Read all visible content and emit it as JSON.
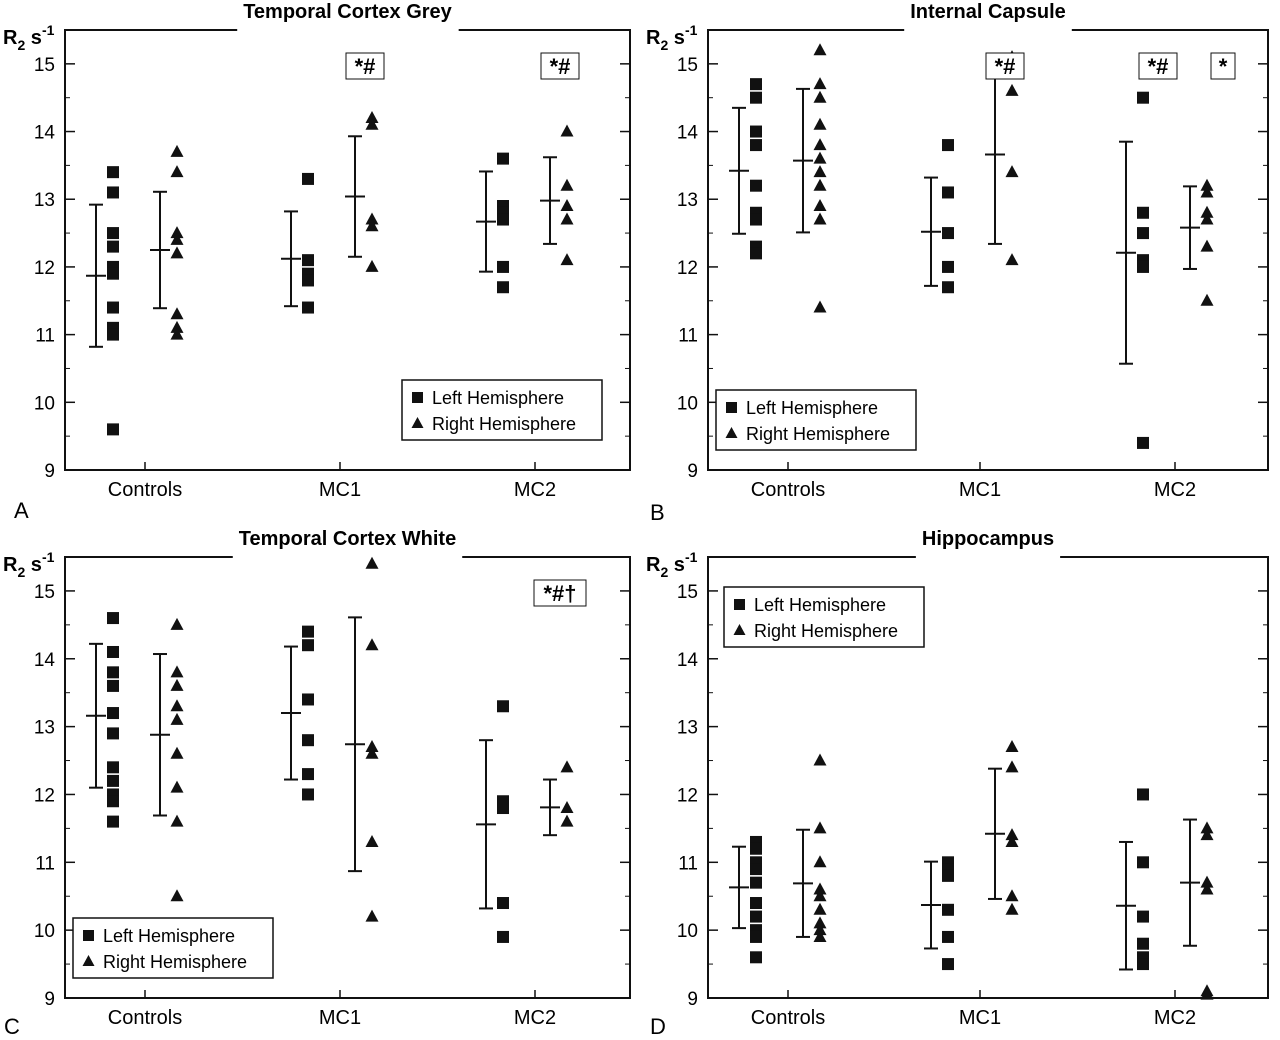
{
  "chart_data": [
    {
      "panel": "A",
      "type": "scatter",
      "title": "Temporal Cortex Grey",
      "ylabel": "R2 s-1",
      "ylim": [
        9,
        15.5
      ],
      "yticks": [
        9,
        10,
        11,
        12,
        13,
        14,
        15
      ],
      "categories": [
        "Controls",
        "MC1",
        "MC2"
      ],
      "legend": {
        "position": "bottom-right",
        "entries": [
          "Left Hemisphere",
          "Right Hemisphere"
        ]
      },
      "significance": [
        {
          "category": "MC1",
          "text": "*#"
        },
        {
          "category": "MC2",
          "text": "*#"
        }
      ],
      "series": [
        {
          "name": "Left Hemisphere",
          "marker": "square",
          "points": [
            [
              0,
              13.4
            ],
            [
              0,
              13.1
            ],
            [
              0,
              12.5
            ],
            [
              0,
              12.3
            ],
            [
              0,
              12.0
            ],
            [
              0,
              11.9
            ],
            [
              0,
              11.4
            ],
            [
              0,
              11.1
            ],
            [
              0,
              11.0
            ],
            [
              0,
              9.6
            ],
            [
              1,
              13.3
            ],
            [
              1,
              12.1
            ],
            [
              1,
              11.9
            ],
            [
              1,
              11.8
            ],
            [
              1,
              11.4
            ],
            [
              2,
              13.6
            ],
            [
              2,
              12.9
            ],
            [
              2,
              12.8
            ],
            [
              2,
              12.7
            ],
            [
              2,
              12.0
            ],
            [
              2,
              11.7
            ]
          ],
          "summary": [
            {
              "category": 0,
              "mean": 11.87,
              "sd": 1.05
            },
            {
              "category": 1,
              "mean": 12.12,
              "sd": 0.7
            },
            {
              "category": 2,
              "mean": 12.67,
              "sd": 0.74
            }
          ]
        },
        {
          "name": "Right Hemisphere",
          "marker": "triangle",
          "points": [
            [
              0,
              13.7
            ],
            [
              0,
              13.4
            ],
            [
              0,
              12.5
            ],
            [
              0,
              12.4
            ],
            [
              0,
              12.2
            ],
            [
              0,
              11.3
            ],
            [
              0,
              11.1
            ],
            [
              0,
              11.0
            ],
            [
              1,
              14.2
            ],
            [
              1,
              14.1
            ],
            [
              1,
              12.7
            ],
            [
              1,
              12.6
            ],
            [
              1,
              12.0
            ],
            [
              2,
              14.0
            ],
            [
              2,
              13.2
            ],
            [
              2,
              12.9
            ],
            [
              2,
              12.7
            ],
            [
              2,
              12.1
            ]
          ],
          "summary": [
            {
              "category": 0,
              "mean": 12.25,
              "sd": 0.86
            },
            {
              "category": 1,
              "mean": 13.04,
              "sd": 0.89
            },
            {
              "category": 2,
              "mean": 12.98,
              "sd": 0.64
            }
          ]
        }
      ]
    },
    {
      "panel": "B",
      "type": "scatter",
      "title": "Internal Capsule",
      "ylabel": "R2 s-1",
      "ylim": [
        9,
        15.5
      ],
      "yticks": [
        9,
        10,
        11,
        12,
        13,
        14,
        15
      ],
      "categories": [
        "Controls",
        "MC1",
        "MC2"
      ],
      "legend": {
        "position": "bottom-left",
        "entries": [
          "Left Hemisphere",
          "Right Hemisphere"
        ]
      },
      "significance": [
        {
          "category": "MC1",
          "text": "*#"
        },
        {
          "category": "MC2-left",
          "text": "*#"
        },
        {
          "category": "MC2-right",
          "text": "*"
        }
      ],
      "series": [
        {
          "name": "Left Hemisphere",
          "marker": "square",
          "points": [
            [
              0,
              14.7
            ],
            [
              0,
              14.5
            ],
            [
              0,
              14.0
            ],
            [
              0,
              13.8
            ],
            [
              0,
              13.2
            ],
            [
              0,
              12.8
            ],
            [
              0,
              12.7
            ],
            [
              0,
              12.3
            ],
            [
              0,
              12.2
            ],
            [
              1,
              13.8
            ],
            [
              1,
              13.1
            ],
            [
              1,
              12.5
            ],
            [
              1,
              12.0
            ],
            [
              1,
              11.7
            ],
            [
              2,
              14.5
            ],
            [
              2,
              12.8
            ],
            [
              2,
              12.5
            ],
            [
              2,
              12.1
            ],
            [
              2,
              12.0
            ],
            [
              2,
              9.4
            ]
          ],
          "summary": [
            {
              "category": 0,
              "mean": 13.42,
              "sd": 0.93
            },
            {
              "category": 1,
              "mean": 12.52,
              "sd": 0.8
            },
            {
              "category": 2,
              "mean": 12.21,
              "sd": 1.64
            }
          ]
        },
        {
          "name": "Right Hemisphere",
          "marker": "triangle",
          "points": [
            [
              0,
              15.2
            ],
            [
              0,
              14.7
            ],
            [
              0,
              14.5
            ],
            [
              0,
              14.1
            ],
            [
              0,
              13.8
            ],
            [
              0,
              13.6
            ],
            [
              0,
              13.4
            ],
            [
              0,
              13.2
            ],
            [
              0,
              12.9
            ],
            [
              0,
              12.7
            ],
            [
              0,
              11.4
            ],
            [
              1,
              15.1
            ],
            [
              1,
              14.6
            ],
            [
              1,
              13.4
            ],
            [
              1,
              12.1
            ],
            [
              2,
              13.2
            ],
            [
              2,
              13.1
            ],
            [
              2,
              12.8
            ],
            [
              2,
              12.7
            ],
            [
              2,
              12.3
            ],
            [
              2,
              11.5
            ]
          ],
          "summary": [
            {
              "category": 0,
              "mean": 13.57,
              "sd": 1.06
            },
            {
              "category": 1,
              "mean": 13.66,
              "sd": 1.32
            },
            {
              "category": 2,
              "mean": 12.58,
              "sd": 0.61
            }
          ]
        }
      ]
    },
    {
      "panel": "C",
      "type": "scatter",
      "title": "Temporal Cortex White",
      "ylabel": "R2 s-1",
      "ylim": [
        9,
        15.5
      ],
      "yticks": [
        9,
        10,
        11,
        12,
        13,
        14,
        15
      ],
      "categories": [
        "Controls",
        "MC1",
        "MC2"
      ],
      "legend": {
        "position": "bottom-left",
        "entries": [
          "Left Hemisphere",
          "Right Hemisphere"
        ]
      },
      "significance": [
        {
          "category": "MC2",
          "text": "*#†"
        }
      ],
      "series": [
        {
          "name": "Left Hemisphere",
          "marker": "square",
          "points": [
            [
              0,
              14.6
            ],
            [
              0,
              14.1
            ],
            [
              0,
              13.8
            ],
            [
              0,
              13.6
            ],
            [
              0,
              13.2
            ],
            [
              0,
              12.9
            ],
            [
              0,
              12.4
            ],
            [
              0,
              12.2
            ],
            [
              0,
              12.0
            ],
            [
              0,
              11.9
            ],
            [
              0,
              11.6
            ],
            [
              1,
              14.4
            ],
            [
              1,
              14.2
            ],
            [
              1,
              13.4
            ],
            [
              1,
              12.8
            ],
            [
              1,
              12.3
            ],
            [
              1,
              12.0
            ],
            [
              2,
              13.3
            ],
            [
              2,
              11.9
            ],
            [
              2,
              11.8
            ],
            [
              2,
              10.4
            ],
            [
              2,
              9.9
            ]
          ],
          "summary": [
            {
              "category": 0,
              "mean": 13.16,
              "sd": 1.06
            },
            {
              "category": 1,
              "mean": 13.2,
              "sd": 0.98
            },
            {
              "category": 2,
              "mean": 11.56,
              "sd": 1.24
            }
          ]
        },
        {
          "name": "Right Hemisphere",
          "marker": "triangle",
          "points": [
            [
              0,
              14.5
            ],
            [
              0,
              13.8
            ],
            [
              0,
              13.6
            ],
            [
              0,
              13.3
            ],
            [
              0,
              13.1
            ],
            [
              0,
              12.6
            ],
            [
              0,
              12.1
            ],
            [
              0,
              11.6
            ],
            [
              0,
              10.5
            ],
            [
              1,
              15.4
            ],
            [
              1,
              14.2
            ],
            [
              1,
              12.7
            ],
            [
              1,
              12.6
            ],
            [
              1,
              11.3
            ],
            [
              1,
              10.2
            ],
            [
              2,
              12.4
            ],
            [
              2,
              11.8
            ],
            [
              2,
              11.6
            ]
          ],
          "summary": [
            {
              "category": 0,
              "mean": 12.88,
              "sd": 1.19
            },
            {
              "category": 1,
              "mean": 12.74,
              "sd": 1.87
            },
            {
              "category": 2,
              "mean": 11.81,
              "sd": 0.41
            }
          ]
        }
      ]
    },
    {
      "panel": "D",
      "type": "scatter",
      "title": "Hippocampus",
      "ylabel": "R2 s-1",
      "ylim": [
        9,
        15.5
      ],
      "yticks": [
        9,
        10,
        11,
        12,
        13,
        14,
        15
      ],
      "categories": [
        "Controls",
        "MC1",
        "MC2"
      ],
      "legend": {
        "position": "top-left",
        "entries": [
          "Left Hemisphere",
          "Right Hemisphere"
        ]
      },
      "significance": [],
      "series": [
        {
          "name": "Left Hemisphere",
          "marker": "square",
          "points": [
            [
              0,
              11.3
            ],
            [
              0,
              11.2
            ],
            [
              0,
              11.0
            ],
            [
              0,
              10.9
            ],
            [
              0,
              10.7
            ],
            [
              0,
              10.4
            ],
            [
              0,
              10.2
            ],
            [
              0,
              10.0
            ],
            [
              0,
              9.9
            ],
            [
              0,
              9.6
            ],
            [
              1,
              11.0
            ],
            [
              1,
              10.9
            ],
            [
              1,
              10.8
            ],
            [
              1,
              10.3
            ],
            [
              1,
              9.9
            ],
            [
              1,
              9.5
            ],
            [
              2,
              12.0
            ],
            [
              2,
              11.0
            ],
            [
              2,
              10.2
            ],
            [
              2,
              9.8
            ],
            [
              2,
              9.6
            ],
            [
              2,
              9.5
            ]
          ],
          "summary": [
            {
              "category": 0,
              "mean": 10.63,
              "sd": 0.6
            },
            {
              "category": 1,
              "mean": 10.37,
              "sd": 0.64
            },
            {
              "category": 2,
              "mean": 10.36,
              "sd": 0.94
            }
          ]
        },
        {
          "name": "Right Hemisphere",
          "marker": "triangle",
          "points": [
            [
              0,
              12.5
            ],
            [
              0,
              11.5
            ],
            [
              0,
              11.0
            ],
            [
              0,
              10.6
            ],
            [
              0,
              10.5
            ],
            [
              0,
              10.3
            ],
            [
              0,
              10.1
            ],
            [
              0,
              10.0
            ],
            [
              0,
              9.9
            ],
            [
              1,
              12.7
            ],
            [
              1,
              12.4
            ],
            [
              1,
              11.4
            ],
            [
              1,
              11.3
            ],
            [
              1,
              10.5
            ],
            [
              1,
              10.3
            ],
            [
              2,
              11.5
            ],
            [
              2,
              11.4
            ],
            [
              2,
              10.7
            ],
            [
              2,
              10.6
            ],
            [
              2,
              9.1
            ],
            [
              2,
              9.05
            ]
          ],
          "summary": [
            {
              "category": 0,
              "mean": 10.69,
              "sd": 0.79
            },
            {
              "category": 1,
              "mean": 11.42,
              "sd": 0.96
            },
            {
              "category": 2,
              "mean": 10.7,
              "sd": 0.93
            }
          ]
        }
      ]
    }
  ]
}
